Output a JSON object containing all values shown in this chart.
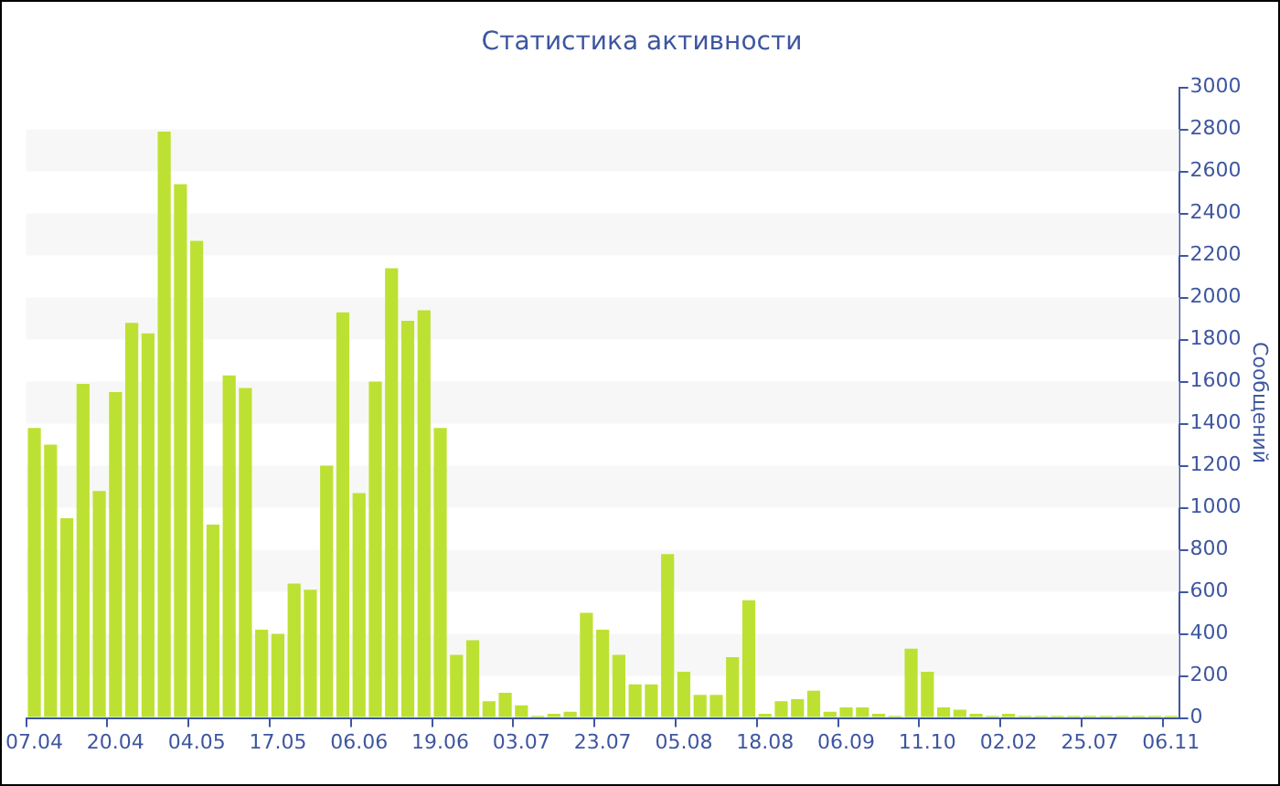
{
  "chart_data": {
    "type": "bar",
    "title": "Статистика активности",
    "ylabel": "Сообщений",
    "categories": [
      "07.04",
      null,
      null,
      null,
      null,
      "20.04",
      null,
      null,
      null,
      null,
      "04.05",
      null,
      null,
      null,
      null,
      "17.05",
      null,
      null,
      null,
      null,
      "06.06",
      null,
      null,
      null,
      null,
      "19.06",
      null,
      null,
      null,
      null,
      "03.07",
      null,
      null,
      null,
      null,
      "23.07",
      null,
      null,
      null,
      null,
      "05.08",
      null,
      null,
      null,
      null,
      "18.08",
      null,
      null,
      null,
      null,
      "06.09",
      null,
      null,
      null,
      null,
      "11.10",
      null,
      null,
      null,
      null,
      "02.02",
      null,
      null,
      null,
      null,
      "25.07",
      null,
      null,
      null,
      null,
      "06.11"
    ],
    "values": [
      1380,
      1300,
      950,
      1590,
      1080,
      1550,
      1880,
      1830,
      2790,
      2540,
      2270,
      920,
      1630,
      1570,
      420,
      400,
      640,
      610,
      1200,
      1930,
      1070,
      1600,
      2140,
      1890,
      1940,
      1380,
      300,
      370,
      80,
      120,
      60,
      10,
      20,
      30,
      500,
      420,
      300,
      160,
      160,
      780,
      220,
      110,
      110,
      290,
      560,
      20,
      80,
      90,
      130,
      30,
      50,
      50,
      20,
      10,
      330,
      220,
      50,
      40,
      20,
      10,
      20,
      10,
      10,
      10,
      10,
      10,
      10,
      10,
      10,
      10,
      10
    ],
    "color": "#bde133",
    "ylim": [
      0,
      3000
    ],
    "yticks": [
      0,
      200,
      400,
      600,
      800,
      1000,
      1200,
      1400,
      1600,
      1800,
      2000,
      2200,
      2400,
      2600,
      2800,
      3000
    ],
    "bands": [
      {
        "axis": "y",
        "from": 200,
        "to": 400,
        "color": "#f7f7f7"
      },
      {
        "axis": "y",
        "from": 600,
        "to": 800,
        "color": "#f7f7f7"
      },
      {
        "axis": "y",
        "from": 1000,
        "to": 1200,
        "color": "#f7f7f7"
      },
      {
        "axis": "y",
        "from": 1400,
        "to": 1600,
        "color": "#f7f7f7"
      },
      {
        "axis": "y",
        "from": 1800,
        "to": 2000,
        "color": "#f7f7f7"
      },
      {
        "axis": "y",
        "from": 2200,
        "to": 2400,
        "color": "#f7f7f7"
      },
      {
        "axis": "y",
        "from": 2600,
        "to": 2800,
        "color": "#f7f7f7"
      }
    ]
  }
}
